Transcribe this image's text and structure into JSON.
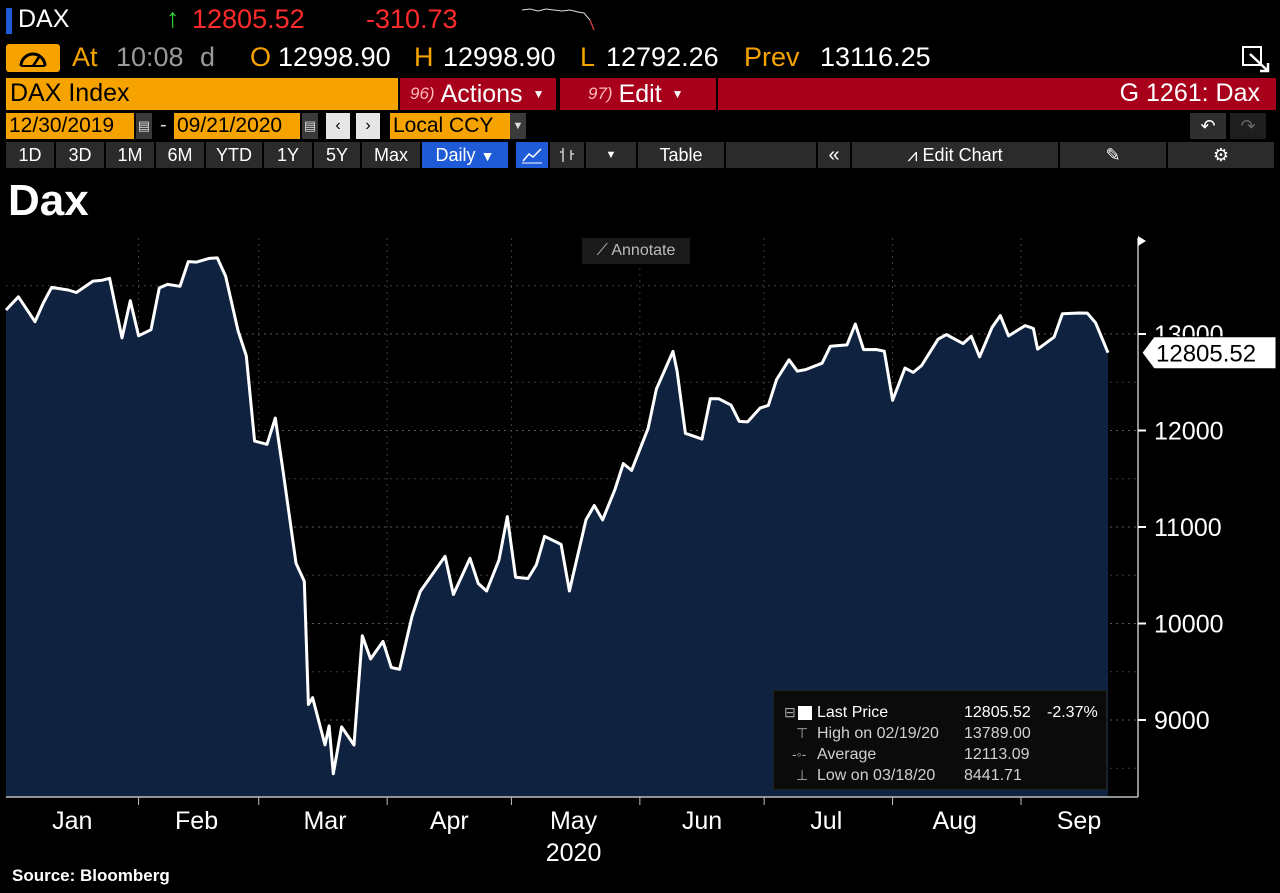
{
  "header": {
    "ticker": "DAX",
    "last": "12805.52",
    "change": "-310.73",
    "time_label": "At",
    "time": "10:08",
    "time_flag": "d",
    "open_label": "O",
    "open": "12998.90",
    "high_label": "H",
    "high": "12998.90",
    "low_label": "L",
    "low": "12792.26",
    "prev_label": "Prev",
    "prev": "13116.25"
  },
  "menu": {
    "security": "DAX Index",
    "actions_num": "96)",
    "actions_label": "Actions",
    "edit_num": "97)",
    "edit_label": "Edit",
    "function_label": "G 1261: Dax"
  },
  "controls": {
    "start_date": "12/30/2019",
    "end_date": "09/21/2020",
    "currency": "Local CCY"
  },
  "toolbar": {
    "periods": [
      "1D",
      "3D",
      "1M",
      "6M",
      "YTD",
      "1Y",
      "5Y",
      "Max"
    ],
    "frequency": "Daily",
    "table_label": "Table",
    "edit_chart_label": "Edit Chart",
    "annotate_label": "Annotate"
  },
  "legend": {
    "last_label": "Last Price",
    "last_value": "12805.52",
    "last_pct": "-2.37%",
    "high_label": "High on 02/19/20",
    "high_value": "13789.00",
    "avg_label": "Average",
    "avg_value": "12113.09",
    "low_label": "Low on 03/18/20",
    "low_value": "8441.71"
  },
  "source": "Source: Bloomberg",
  "colors": {
    "background": "#000000",
    "area_fill": "#0f2340",
    "line": "#ffffff",
    "accent_orange": "#f6a300",
    "accent_red": "#a8001a",
    "negative": "#ff2b2b"
  },
  "chart_data": {
    "type": "area",
    "title": "Dax",
    "x_tick_labels": [
      "Jan",
      "Feb",
      "Mar",
      "Apr",
      "May",
      "Jun",
      "Jul",
      "Aug",
      "Sep"
    ],
    "x_sublabel": "2020",
    "y_ticks": [
      9000,
      10000,
      11000,
      12000,
      13000
    ],
    "ylim": [
      8200,
      13950
    ],
    "grid": true,
    "last_price_label": "12805.52",
    "series": [
      {
        "x": [
          "2019-12-30",
          "2020-01-02",
          "2020-01-06",
          "2020-01-08",
          "2020-01-10",
          "2020-01-14",
          "2020-01-16",
          "2020-01-20",
          "2020-01-22",
          "2020-01-24",
          "2020-01-27",
          "2020-01-29",
          "2020-01-31",
          "2020-02-03",
          "2020-02-05",
          "2020-02-07",
          "2020-02-10",
          "2020-02-12",
          "2020-02-14",
          "2020-02-17",
          "2020-02-19",
          "2020-02-21",
          "2020-02-24",
          "2020-02-26",
          "2020-02-28",
          "2020-03-02",
          "2020-03-04",
          "2020-03-06",
          "2020-03-09",
          "2020-03-11",
          "2020-03-12",
          "2020-03-13",
          "2020-03-16",
          "2020-03-17",
          "2020-03-18",
          "2020-03-20",
          "2020-03-23",
          "2020-03-25",
          "2020-03-27",
          "2020-03-30",
          "2020-04-01",
          "2020-04-03",
          "2020-04-06",
          "2020-04-08",
          "2020-04-14",
          "2020-04-16",
          "2020-04-20",
          "2020-04-22",
          "2020-04-24",
          "2020-04-27",
          "2020-04-29",
          "2020-05-01",
          "2020-05-04",
          "2020-05-06",
          "2020-05-08",
          "2020-05-12",
          "2020-05-14",
          "2020-05-18",
          "2020-05-20",
          "2020-05-22",
          "2020-05-25",
          "2020-05-27",
          "2020-05-29",
          "2020-06-02",
          "2020-06-04",
          "2020-06-08",
          "2020-06-09",
          "2020-06-11",
          "2020-06-15",
          "2020-06-17",
          "2020-06-19",
          "2020-06-22",
          "2020-06-24",
          "2020-06-26",
          "2020-06-29",
          "2020-07-01",
          "2020-07-03",
          "2020-07-06",
          "2020-07-08",
          "2020-07-10",
          "2020-07-14",
          "2020-07-16",
          "2020-07-20",
          "2020-07-22",
          "2020-07-24",
          "2020-07-27",
          "2020-07-29",
          "2020-07-31",
          "2020-08-03",
          "2020-08-05",
          "2020-08-07",
          "2020-08-11",
          "2020-08-13",
          "2020-08-17",
          "2020-08-19",
          "2020-08-21",
          "2020-08-24",
          "2020-08-26",
          "2020-08-28",
          "2020-09-01",
          "2020-09-03",
          "2020-09-04",
          "2020-09-08",
          "2020-09-10",
          "2020-09-14",
          "2020-09-16",
          "2020-09-18",
          "2020-09-21"
        ],
        "values": [
          13249,
          13385,
          13127,
          13321,
          13483,
          13456,
          13430,
          13548,
          13555,
          13577,
          12960,
          13345,
          12981,
          13045,
          13478,
          13514,
          13494,
          13750,
          13745,
          13783,
          13789,
          13600,
          13035,
          12774,
          11890,
          11857,
          12128,
          11541,
          10625,
          10438,
          9161,
          9232,
          8742,
          8939,
          8442,
          8929,
          8741,
          9874,
          9632,
          9815,
          9544,
          9525,
          10075,
          10333,
          10696,
          10301,
          10676,
          10415,
          10337,
          10659,
          11108,
          10480,
          10466,
          10607,
          10904,
          10820,
          10337,
          11075,
          11223,
          11074,
          11391,
          11657,
          11587,
          12022,
          12430,
          12820,
          12615,
          11971,
          11911,
          12331,
          12330,
          12263,
          12094,
          12089,
          12232,
          12260,
          12528,
          12733,
          12616,
          12631,
          12697,
          12874,
          12887,
          13104,
          12838,
          12839,
          12822,
          12313,
          12647,
          12602,
          12674,
          12946,
          12994,
          12901,
          12977,
          12764,
          13067,
          13191,
          12980,
          13087,
          13057,
          12843,
          12968,
          13209,
          13218,
          13217,
          13116,
          12806
        ]
      }
    ]
  }
}
